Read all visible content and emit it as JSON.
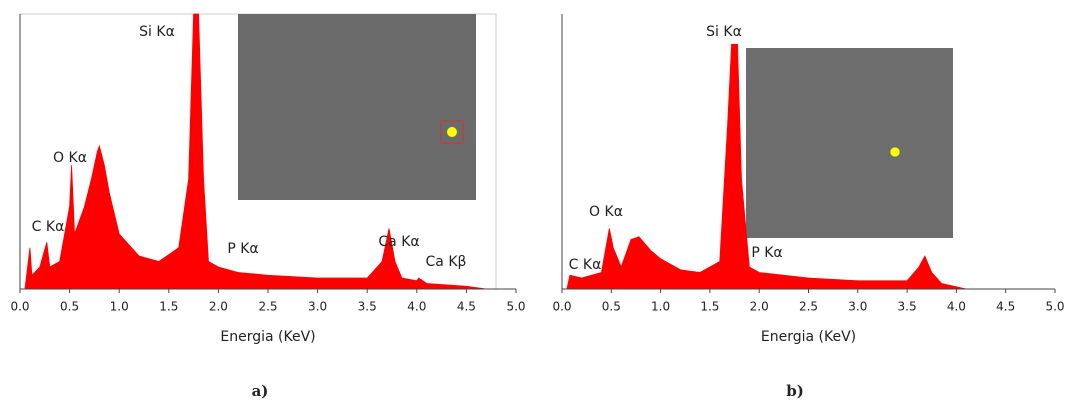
{
  "chart_data": [
    {
      "type": "area",
      "caption": "a)",
      "x_label": "Energia (KeV)",
      "color": "#ff0000",
      "x": [
        0.05,
        0.1,
        0.12,
        0.2,
        0.27,
        0.3,
        0.4,
        0.5,
        0.52,
        0.55,
        0.65,
        0.72,
        0.78,
        0.8,
        0.85,
        0.9,
        1.0,
        1.2,
        1.4,
        1.6,
        1.7,
        1.75,
        1.8,
        1.85,
        1.9,
        2.0,
        2.2,
        2.5,
        3.0,
        3.5,
        3.65,
        3.72,
        3.78,
        3.85,
        4.0,
        4.02,
        4.1,
        4.5,
        4.7
      ],
      "values": [
        0,
        15,
        5,
        8,
        17,
        8,
        10,
        30,
        45,
        20,
        30,
        40,
        50,
        52,
        45,
        35,
        20,
        12,
        10,
        15,
        40,
        100,
        100,
        40,
        10,
        8,
        6,
        5,
        4,
        4,
        10,
        22,
        10,
        4,
        3,
        4,
        2,
        1,
        0
      ],
      "xlim": [
        0,
        5
      ],
      "ylim": [
        0,
        100
      ],
      "xticks": [
        {
          "value": 0,
          "label": "0.0"
        },
        0.5,
        {
          "value": 1,
          "label": "1.0"
        },
        1.5,
        {
          "value": 2,
          "label": "2.0"
        },
        2.5,
        {
          "value": 3,
          "label": "3.0"
        },
        3.5,
        {
          "value": 4,
          "label": "4.0"
        },
        4.5,
        {
          "value": 5,
          "label": "5.0"
        }
      ],
      "annotations": [
        "Si Kα",
        "O Kα",
        "C Kα",
        "P Kα",
        "Ca Kα",
        "Ca Kβ"
      ]
    },
    {
      "type": "area",
      "caption": "b)",
      "x_label": "Energia (KeV)",
      "color": "#ff0000",
      "x": [
        0.05,
        0.08,
        0.2,
        0.4,
        0.48,
        0.52,
        0.6,
        0.7,
        0.78,
        0.9,
        1.0,
        1.2,
        1.4,
        1.6,
        1.68,
        1.72,
        1.78,
        1.82,
        1.9,
        2.0,
        2.5,
        3.0,
        3.5,
        3.62,
        3.68,
        3.75,
        3.85,
        4.1
      ],
      "values": [
        0,
        5,
        4,
        6,
        22,
        15,
        8,
        18,
        19,
        14,
        11,
        7,
        6,
        10,
        60,
        89,
        89,
        40,
        8,
        6,
        4,
        3,
        3,
        8,
        12,
        6,
        2,
        0
      ],
      "xlim": [
        0,
        5
      ],
      "ylim": [
        0,
        100
      ],
      "xticks": [
        {
          "value": 0,
          "label": "0.0"
        },
        0.5,
        {
          "value": 1,
          "label": "1.0"
        },
        1.5,
        {
          "value": 2,
          "label": "2.0"
        },
        2.5,
        {
          "value": 3,
          "label": "3.0"
        },
        3.5,
        {
          "value": 4,
          "label": "4.0"
        },
        4.5,
        {
          "value": 5,
          "label": "5.0"
        }
      ],
      "annotations": [
        "Si Kα",
        "O Kα",
        "C Kα",
        "P Kα"
      ]
    }
  ]
}
